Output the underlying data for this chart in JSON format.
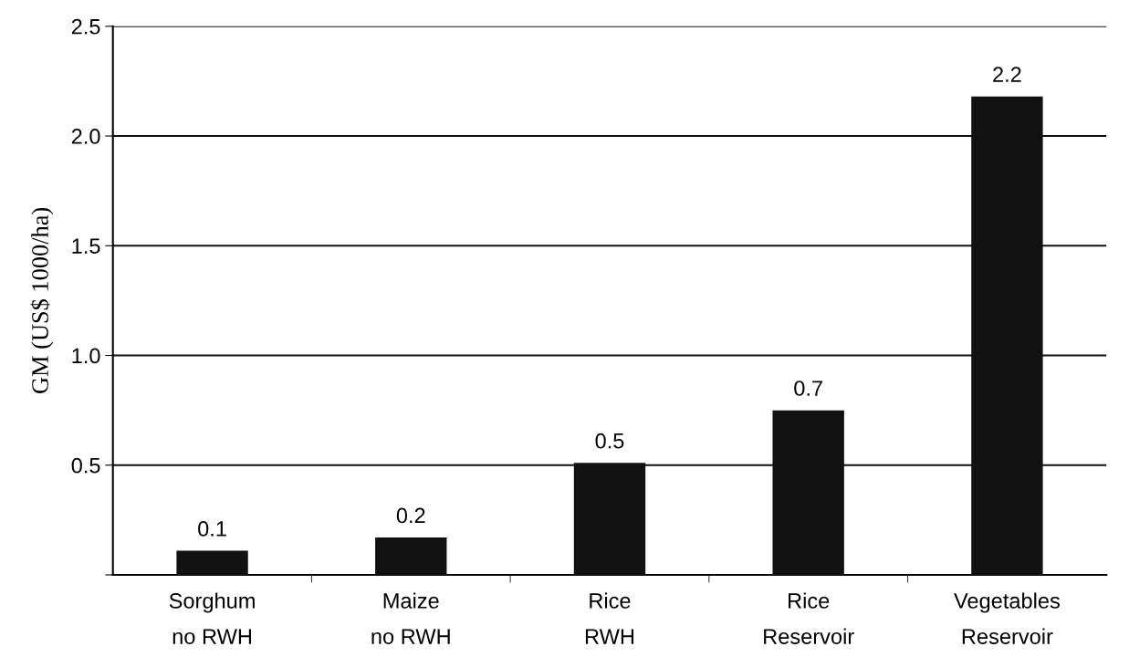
{
  "chart_data": {
    "type": "bar",
    "ylabel": "GM (US$ 1000/ha)",
    "categories": [
      "Sorghum\nno RWH",
      "Maize\nno RWH",
      "Rice\nRWH",
      "Rice\nReservoir",
      "Vegetables\nReservoir"
    ],
    "values": [
      0.11,
      0.17,
      0.51,
      0.75,
      2.18
    ],
    "value_labels": [
      "0.1",
      "0.2",
      "0.5",
      "0.7",
      "2.2"
    ],
    "color": "#111111",
    "ylim": [
      0,
      2.5
    ],
    "yticks": [
      {
        "value": 0,
        "label": null
      },
      0.5,
      {
        "value": 1,
        "label": "1.0"
      },
      1.5,
      {
        "value": 2,
        "label": "2.0"
      },
      2.5
    ],
    "grid": "y"
  }
}
